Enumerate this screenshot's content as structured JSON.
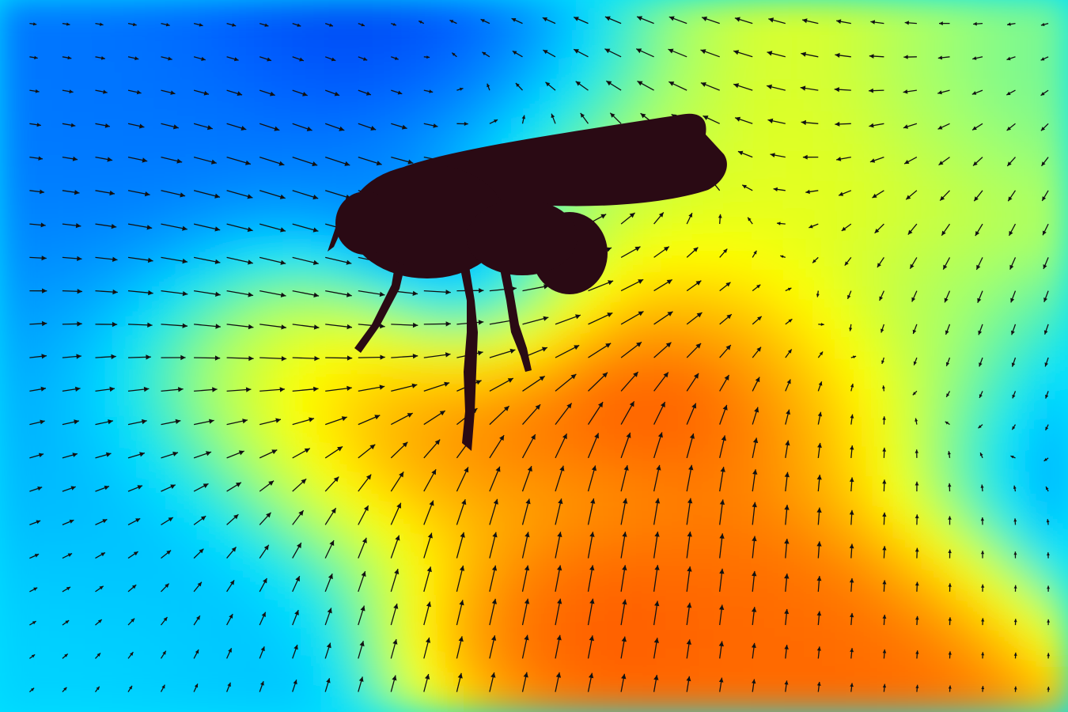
{
  "chart_data": {
    "type": "heatmap",
    "title": "",
    "xlabel": "",
    "ylabel": "",
    "grid": false,
    "legend": "none",
    "overlay": "vector-field-arrows",
    "silhouette": "insect-icon",
    "colormap": [
      "#0000d0",
      "#0060ff",
      "#00e0ff",
      "#a0ff70",
      "#ffff00",
      "#ffa000",
      "#ff2000",
      "#b00000"
    ],
    "scale_max": 10,
    "field_centers": [
      {
        "x": 1.0,
        "y": 4.0,
        "value": 2.4,
        "spread": 3.2
      },
      {
        "x": 4.5,
        "y": 8.9,
        "value": 0.3,
        "spread": 1.6
      },
      {
        "x": 1.5,
        "y": 7.0,
        "value": 1.5,
        "spread": 2.2
      },
      {
        "x": 6.9,
        "y": 7.9,
        "value": 5.6,
        "spread": 2.4
      },
      {
        "x": 6.0,
        "y": 6.5,
        "value": 5.0,
        "spread": 2.0
      },
      {
        "x": 2.8,
        "y": 5.0,
        "value": 7.6,
        "spread": 1.3
      },
      {
        "x": 4.0,
        "y": 4.0,
        "value": 9.1,
        "spread": 1.4
      },
      {
        "x": 6.0,
        "y": 5.0,
        "value": 9.6,
        "spread": 1.3
      },
      {
        "x": 7.5,
        "y": 4.3,
        "value": 8.0,
        "spread": 1.4
      },
      {
        "x": 5.3,
        "y": 1.5,
        "value": 8.2,
        "spread": 1.2
      },
      {
        "x": 7.5,
        "y": 1.8,
        "value": 7.8,
        "spread": 1.4
      },
      {
        "x": 4.0,
        "y": 6.8,
        "value": 0.8,
        "spread": 1.0
      },
      {
        "x": 4.5,
        "y": 6.0,
        "value": 0.5,
        "spread": 0.9
      },
      {
        "x": 8.6,
        "y": 5.5,
        "value": 4.2,
        "spread": 1.2
      },
      {
        "x": 9.7,
        "y": 4.0,
        "value": 2.0,
        "spread": 1.6
      },
      {
        "x": 9.5,
        "y": 8.8,
        "value": 3.6,
        "spread": 1.4
      },
      {
        "x": 0.3,
        "y": 0.8,
        "value": 2.8,
        "spread": 1.6
      }
    ],
    "flow_centers": [
      {
        "x": 4.9,
        "y": 6.7,
        "u": 3.0,
        "v": 0.0
      },
      {
        "x": 6.0,
        "y": 3.0,
        "u": 0.0,
        "v": 2.5
      },
      {
        "x": 4.5,
        "y": 1.5,
        "u": 0.6,
        "v": 2.0
      },
      {
        "x": 6.5,
        "y": 8.6,
        "u": -2.5,
        "v": 0.8
      },
      {
        "x": 2.5,
        "y": 6.8,
        "u": 2.8,
        "v": -0.3
      },
      {
        "x": 8.5,
        "y": 6.5,
        "u": -0.4,
        "v": -1.5
      },
      {
        "x": 1.0,
        "y": 4.0,
        "u": 1.2,
        "v": 0.4
      }
    ]
  }
}
